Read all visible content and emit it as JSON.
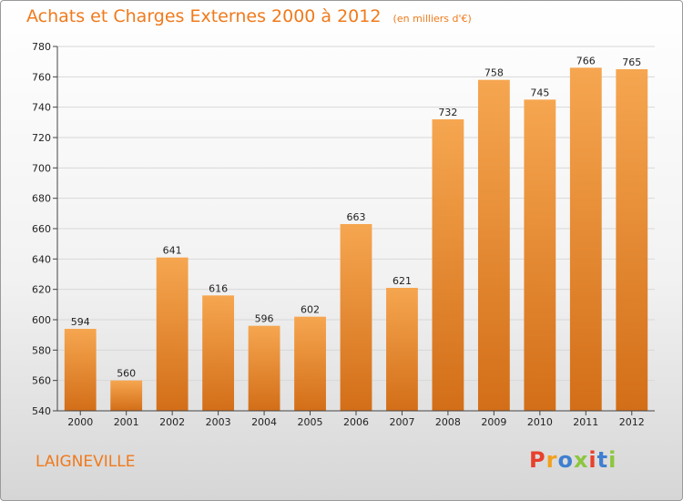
{
  "header": {
    "title": "Achats et Charges Externes 2000 à 2012",
    "unit": "(en milliers d'€)"
  },
  "footer": {
    "commune": "LAIGNEVILLE",
    "logo": "Proxiti"
  },
  "colors": {
    "accent": "#f07a1c",
    "bar_top": "#f6a650",
    "bar_bottom": "#d36e18",
    "logo_letters": [
      "#e8402c",
      "#f2a11d",
      "#3f7fd0",
      "#8cc63e",
      "#e8402c",
      "#3f7fd0",
      "#8cc63e"
    ]
  },
  "chart_data": {
    "type": "bar",
    "title": "Achats et Charges Externes 2000 à 2012",
    "subtitle": "(en milliers d'€)",
    "xlabel": "",
    "ylabel": "",
    "categories": [
      "2000",
      "2001",
      "2002",
      "2003",
      "2004",
      "2005",
      "2006",
      "2007",
      "2008",
      "2009",
      "2010",
      "2011",
      "2012"
    ],
    "values": [
      594,
      560,
      641,
      616,
      596,
      602,
      663,
      621,
      732,
      758,
      745,
      766,
      765
    ],
    "ylim": [
      540,
      780
    ],
    "yticks": [
      540,
      560,
      580,
      600,
      620,
      640,
      660,
      680,
      700,
      720,
      740,
      760,
      780
    ],
    "grid": true,
    "data_labels": true
  }
}
